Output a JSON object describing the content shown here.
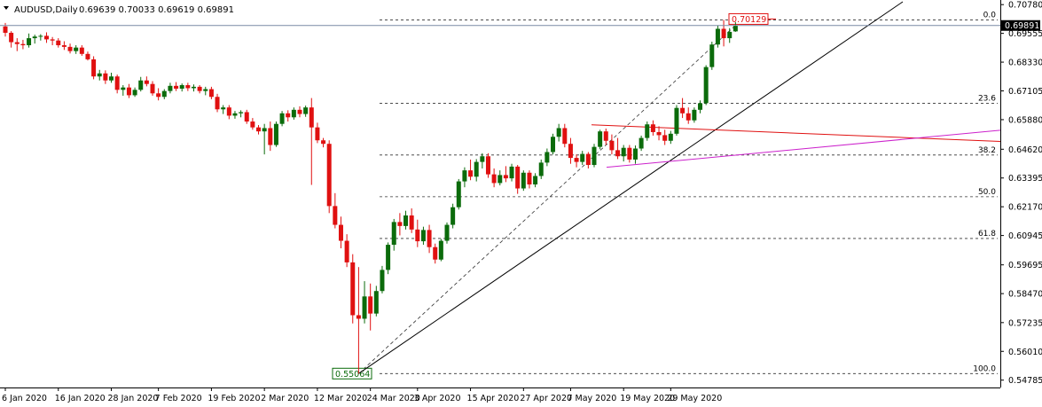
{
  "header": {
    "symbol": "AUDUSD,Daily",
    "ohlc": "0.69639 0.70033 0.69619 0.69891"
  },
  "chart_data": {
    "type": "candlestick",
    "symbol": "AUDUSD",
    "timeframe": "Daily",
    "ylim": [
      0.5466,
      0.7075
    ],
    "y_ticks": [
      "0.70780",
      "0.69555",
      "0.68330",
      "0.67105",
      "0.65880",
      "0.64620",
      "0.63395",
      "0.62170",
      "0.60945",
      "0.59695",
      "0.58470",
      "0.57235",
      "0.56010",
      "0.54785"
    ],
    "x_ticks": [
      "6 Jan 2020",
      "16 Jan 2020",
      "28 Jan 2020",
      "7 Feb 2020",
      "19 Feb 2020",
      "2 Mar 2020",
      "12 Mar 2020",
      "24 Mar 2020",
      "3 Apr 2020",
      "15 Apr 2020",
      "27 Apr 2020",
      "7 May 2020",
      "19 May 2020",
      "29 May 2020"
    ],
    "current_price": "0.69891",
    "high_label": "0.70129",
    "low_label": "0.55064",
    "fib_levels": [
      {
        "label": "0.0",
        "price": 0.70129
      },
      {
        "label": "23.6",
        "price": 0.66574
      },
      {
        "label": "38.2",
        "price": 0.64374
      },
      {
        "label": "50.0",
        "price": 0.62597
      },
      {
        "label": "61.8",
        "price": 0.60819
      },
      {
        "label": "100.0",
        "price": 0.55064
      }
    ],
    "candles": [
      {
        "o": 0.6985,
        "h": 0.7,
        "l": 0.6942,
        "c": 0.6958
      },
      {
        "o": 0.6958,
        "h": 0.6965,
        "l": 0.6895,
        "c": 0.6918
      },
      {
        "o": 0.6918,
        "h": 0.6935,
        "l": 0.688,
        "c": 0.691
      },
      {
        "o": 0.691,
        "h": 0.6928,
        "l": 0.6888,
        "c": 0.6905
      },
      {
        "o": 0.6905,
        "h": 0.6955,
        "l": 0.6895,
        "c": 0.6935
      },
      {
        "o": 0.6935,
        "h": 0.695,
        "l": 0.6912,
        "c": 0.6942
      },
      {
        "o": 0.6942,
        "h": 0.6952,
        "l": 0.6925,
        "c": 0.6945
      },
      {
        "o": 0.6945,
        "h": 0.696,
        "l": 0.6915,
        "c": 0.693
      },
      {
        "o": 0.693,
        "h": 0.694,
        "l": 0.6905,
        "c": 0.6925
      },
      {
        "o": 0.6925,
        "h": 0.6935,
        "l": 0.6895,
        "c": 0.6905
      },
      {
        "o": 0.6905,
        "h": 0.6922,
        "l": 0.6885,
        "c": 0.6898
      },
      {
        "o": 0.6898,
        "h": 0.6912,
        "l": 0.687,
        "c": 0.688
      },
      {
        "o": 0.688,
        "h": 0.6905,
        "l": 0.6868,
        "c": 0.6895
      },
      {
        "o": 0.6895,
        "h": 0.6905,
        "l": 0.686,
        "c": 0.6868
      },
      {
        "o": 0.6868,
        "h": 0.6878,
        "l": 0.684,
        "c": 0.6845
      },
      {
        "o": 0.6845,
        "h": 0.6858,
        "l": 0.676,
        "c": 0.6772
      },
      {
        "o": 0.6772,
        "h": 0.68,
        "l": 0.6755,
        "c": 0.6785
      },
      {
        "o": 0.6785,
        "h": 0.6798,
        "l": 0.674,
        "c": 0.6755
      },
      {
        "o": 0.6755,
        "h": 0.6788,
        "l": 0.6745,
        "c": 0.6772
      },
      {
        "o": 0.6772,
        "h": 0.678,
        "l": 0.67,
        "c": 0.6715
      },
      {
        "o": 0.6715,
        "h": 0.6735,
        "l": 0.669,
        "c": 0.6725
      },
      {
        "o": 0.6725,
        "h": 0.674,
        "l": 0.668,
        "c": 0.6692
      },
      {
        "o": 0.6692,
        "h": 0.6725,
        "l": 0.6685,
        "c": 0.6715
      },
      {
        "o": 0.6715,
        "h": 0.677,
        "l": 0.6708,
        "c": 0.6755
      },
      {
        "o": 0.6755,
        "h": 0.6772,
        "l": 0.673,
        "c": 0.674
      },
      {
        "o": 0.674,
        "h": 0.6752,
        "l": 0.669,
        "c": 0.67
      },
      {
        "o": 0.67,
        "h": 0.6722,
        "l": 0.667,
        "c": 0.6685
      },
      {
        "o": 0.6685,
        "h": 0.6718,
        "l": 0.6675,
        "c": 0.671
      },
      {
        "o": 0.671,
        "h": 0.6745,
        "l": 0.67,
        "c": 0.6732
      },
      {
        "o": 0.6732,
        "h": 0.6748,
        "l": 0.671,
        "c": 0.672
      },
      {
        "o": 0.672,
        "h": 0.6742,
        "l": 0.6708,
        "c": 0.6735
      },
      {
        "o": 0.6735,
        "h": 0.6745,
        "l": 0.671,
        "c": 0.6722
      },
      {
        "o": 0.6722,
        "h": 0.6738,
        "l": 0.6708,
        "c": 0.6728
      },
      {
        "o": 0.6728,
        "h": 0.6735,
        "l": 0.67,
        "c": 0.671
      },
      {
        "o": 0.671,
        "h": 0.6728,
        "l": 0.6692,
        "c": 0.6718
      },
      {
        "o": 0.6718,
        "h": 0.6728,
        "l": 0.6675,
        "c": 0.6685
      },
      {
        "o": 0.6685,
        "h": 0.6698,
        "l": 0.662,
        "c": 0.6632
      },
      {
        "o": 0.6632,
        "h": 0.665,
        "l": 0.6612,
        "c": 0.664
      },
      {
        "o": 0.664,
        "h": 0.665,
        "l": 0.659,
        "c": 0.6605
      },
      {
        "o": 0.6605,
        "h": 0.6625,
        "l": 0.6592,
        "c": 0.6615
      },
      {
        "o": 0.6615,
        "h": 0.6628,
        "l": 0.6598,
        "c": 0.662
      },
      {
        "o": 0.662,
        "h": 0.663,
        "l": 0.657,
        "c": 0.658
      },
      {
        "o": 0.658,
        "h": 0.6595,
        "l": 0.6545,
        "c": 0.6555
      },
      {
        "o": 0.6555,
        "h": 0.6565,
        "l": 0.6525,
        "c": 0.6538
      },
      {
        "o": 0.6538,
        "h": 0.657,
        "l": 0.644,
        "c": 0.6552
      },
      {
        "o": 0.6552,
        "h": 0.658,
        "l": 0.6455,
        "c": 0.648
      },
      {
        "o": 0.648,
        "h": 0.658,
        "l": 0.6472,
        "c": 0.657
      },
      {
        "o": 0.657,
        "h": 0.6625,
        "l": 0.656,
        "c": 0.6615
      },
      {
        "o": 0.6615,
        "h": 0.6628,
        "l": 0.658,
        "c": 0.6598
      },
      {
        "o": 0.6598,
        "h": 0.664,
        "l": 0.6588,
        "c": 0.663
      },
      {
        "o": 0.663,
        "h": 0.6645,
        "l": 0.6598,
        "c": 0.6612
      },
      {
        "o": 0.6612,
        "h": 0.6648,
        "l": 0.66,
        "c": 0.664
      },
      {
        "o": 0.664,
        "h": 0.668,
        "l": 0.631,
        "c": 0.6555
      },
      {
        "o": 0.6555,
        "h": 0.6575,
        "l": 0.6488,
        "c": 0.65
      },
      {
        "o": 0.65,
        "h": 0.651,
        "l": 0.647,
        "c": 0.6485
      },
      {
        "o": 0.6485,
        "h": 0.65,
        "l": 0.619,
        "c": 0.622
      },
      {
        "o": 0.622,
        "h": 0.6275,
        "l": 0.6125,
        "c": 0.614
      },
      {
        "o": 0.614,
        "h": 0.6175,
        "l": 0.604,
        "c": 0.6072
      },
      {
        "o": 0.6072,
        "h": 0.61,
        "l": 0.596,
        "c": 0.598
      },
      {
        "o": 0.598,
        "h": 0.6015,
        "l": 0.572,
        "c": 0.5755
      },
      {
        "o": 0.5755,
        "h": 0.596,
        "l": 0.5506,
        "c": 0.574
      },
      {
        "o": 0.574,
        "h": 0.59,
        "l": 0.572,
        "c": 0.5835
      },
      {
        "o": 0.5835,
        "h": 0.589,
        "l": 0.569,
        "c": 0.5762
      },
      {
        "o": 0.5762,
        "h": 0.588,
        "l": 0.575,
        "c": 0.5858
      },
      {
        "o": 0.5858,
        "h": 0.5965,
        "l": 0.5848,
        "c": 0.5948
      },
      {
        "o": 0.5948,
        "h": 0.6065,
        "l": 0.593,
        "c": 0.6055
      },
      {
        "o": 0.6055,
        "h": 0.6165,
        "l": 0.603,
        "c": 0.6152
      },
      {
        "o": 0.6152,
        "h": 0.619,
        "l": 0.6095,
        "c": 0.6135
      },
      {
        "o": 0.6135,
        "h": 0.62,
        "l": 0.612,
        "c": 0.618
      },
      {
        "o": 0.618,
        "h": 0.621,
        "l": 0.6105,
        "c": 0.612
      },
      {
        "o": 0.612,
        "h": 0.6162,
        "l": 0.6045,
        "c": 0.607
      },
      {
        "o": 0.607,
        "h": 0.6132,
        "l": 0.6055,
        "c": 0.6118
      },
      {
        "o": 0.6118,
        "h": 0.614,
        "l": 0.602,
        "c": 0.6045
      },
      {
        "o": 0.6045,
        "h": 0.606,
        "l": 0.5975,
        "c": 0.5992
      },
      {
        "o": 0.5992,
        "h": 0.608,
        "l": 0.5985,
        "c": 0.6072
      },
      {
        "o": 0.6072,
        "h": 0.615,
        "l": 0.606,
        "c": 0.614
      },
      {
        "o": 0.614,
        "h": 0.623,
        "l": 0.6125,
        "c": 0.6215
      },
      {
        "o": 0.6215,
        "h": 0.6335,
        "l": 0.6205,
        "c": 0.6325
      },
      {
        "o": 0.6325,
        "h": 0.6385,
        "l": 0.63,
        "c": 0.6372
      },
      {
        "o": 0.6372,
        "h": 0.6418,
        "l": 0.633,
        "c": 0.6345
      },
      {
        "o": 0.6345,
        "h": 0.642,
        "l": 0.6325,
        "c": 0.6408
      },
      {
        "o": 0.6408,
        "h": 0.6445,
        "l": 0.638,
        "c": 0.6432
      },
      {
        "o": 0.6432,
        "h": 0.6445,
        "l": 0.634,
        "c": 0.6355
      },
      {
        "o": 0.6355,
        "h": 0.638,
        "l": 0.63,
        "c": 0.6318
      },
      {
        "o": 0.6318,
        "h": 0.6372,
        "l": 0.6308,
        "c": 0.6352
      },
      {
        "o": 0.6352,
        "h": 0.639,
        "l": 0.6322,
        "c": 0.6338
      },
      {
        "o": 0.6338,
        "h": 0.64,
        "l": 0.6325,
        "c": 0.6388
      },
      {
        "o": 0.6388,
        "h": 0.6395,
        "l": 0.6272,
        "c": 0.6295
      },
      {
        "o": 0.6295,
        "h": 0.6372,
        "l": 0.6285,
        "c": 0.6362
      },
      {
        "o": 0.6362,
        "h": 0.6372,
        "l": 0.6295,
        "c": 0.6312
      },
      {
        "o": 0.6312,
        "h": 0.636,
        "l": 0.63,
        "c": 0.6348
      },
      {
        "o": 0.6348,
        "h": 0.6418,
        "l": 0.6335,
        "c": 0.6405
      },
      {
        "o": 0.6405,
        "h": 0.6465,
        "l": 0.639,
        "c": 0.645
      },
      {
        "o": 0.645,
        "h": 0.6528,
        "l": 0.644,
        "c": 0.6515
      },
      {
        "o": 0.6515,
        "h": 0.657,
        "l": 0.6495,
        "c": 0.6552
      },
      {
        "o": 0.6552,
        "h": 0.657,
        "l": 0.647,
        "c": 0.6485
      },
      {
        "o": 0.6485,
        "h": 0.651,
        "l": 0.64,
        "c": 0.6425
      },
      {
        "o": 0.6425,
        "h": 0.644,
        "l": 0.6385,
        "c": 0.6408
      },
      {
        "o": 0.6408,
        "h": 0.6455,
        "l": 0.6395,
        "c": 0.6442
      },
      {
        "o": 0.6442,
        "h": 0.645,
        "l": 0.638,
        "c": 0.6395
      },
      {
        "o": 0.6395,
        "h": 0.6485,
        "l": 0.6385,
        "c": 0.6472
      },
      {
        "o": 0.6472,
        "h": 0.6545,
        "l": 0.6462,
        "c": 0.6538
      },
      {
        "o": 0.6538,
        "h": 0.655,
        "l": 0.648,
        "c": 0.6498
      },
      {
        "o": 0.6498,
        "h": 0.6525,
        "l": 0.644,
        "c": 0.6458
      },
      {
        "o": 0.6458,
        "h": 0.651,
        "l": 0.642,
        "c": 0.6432
      },
      {
        "o": 0.6432,
        "h": 0.648,
        "l": 0.641,
        "c": 0.6468
      },
      {
        "o": 0.6468,
        "h": 0.648,
        "l": 0.6405,
        "c": 0.6418
      },
      {
        "o": 0.6418,
        "h": 0.6478,
        "l": 0.64,
        "c": 0.6465
      },
      {
        "o": 0.6465,
        "h": 0.652,
        "l": 0.6455,
        "c": 0.651
      },
      {
        "o": 0.651,
        "h": 0.658,
        "l": 0.6498,
        "c": 0.6568
      },
      {
        "o": 0.6568,
        "h": 0.6585,
        "l": 0.652,
        "c": 0.6535
      },
      {
        "o": 0.6535,
        "h": 0.656,
        "l": 0.65,
        "c": 0.6522
      },
      {
        "o": 0.6522,
        "h": 0.6545,
        "l": 0.648,
        "c": 0.6498
      },
      {
        "o": 0.6498,
        "h": 0.654,
        "l": 0.6485,
        "c": 0.6528
      },
      {
        "o": 0.6528,
        "h": 0.665,
        "l": 0.652,
        "c": 0.6638
      },
      {
        "o": 0.6638,
        "h": 0.668,
        "l": 0.6595,
        "c": 0.6615
      },
      {
        "o": 0.6615,
        "h": 0.664,
        "l": 0.657,
        "c": 0.6585
      },
      {
        "o": 0.6585,
        "h": 0.664,
        "l": 0.6575,
        "c": 0.663
      },
      {
        "o": 0.663,
        "h": 0.667,
        "l": 0.6615,
        "c": 0.6658
      },
      {
        "o": 0.6658,
        "h": 0.682,
        "l": 0.665,
        "c": 0.6812
      },
      {
        "o": 0.6812,
        "h": 0.692,
        "l": 0.68,
        "c": 0.6908
      },
      {
        "o": 0.6908,
        "h": 0.699,
        "l": 0.6895,
        "c": 0.6975
      },
      {
        "o": 0.6975,
        "h": 0.7013,
        "l": 0.69,
        "c": 0.6935
      },
      {
        "o": 0.6935,
        "h": 0.6978,
        "l": 0.6915,
        "c": 0.6962
      },
      {
        "o": 0.6964,
        "h": 0.7003,
        "l": 0.6962,
        "c": 0.6989
      }
    ]
  }
}
